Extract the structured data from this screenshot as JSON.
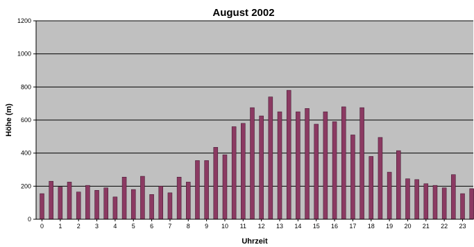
{
  "chart_data": {
    "type": "bar",
    "title": "August 2002",
    "xlabel": "Uhrzeit",
    "ylabel": "Höhe (m)",
    "ylim": [
      0,
      1200
    ],
    "yticks": [
      0,
      200,
      400,
      600,
      800,
      1000,
      1200
    ],
    "xtick_labels": [
      "0",
      "1",
      "2",
      "3",
      "4",
      "5",
      "6",
      "7",
      "8",
      "9",
      "10",
      "11",
      "12",
      "13",
      "14",
      "15",
      "16",
      "17",
      "18",
      "19",
      "20",
      "21",
      "22",
      "23"
    ],
    "x": [
      0,
      0.5,
      1,
      1.5,
      2,
      2.5,
      3,
      3.5,
      4,
      4.5,
      5,
      5.5,
      6,
      6.5,
      7,
      7.5,
      8,
      8.5,
      9,
      9.5,
      10,
      10.5,
      11,
      11.5,
      12,
      12.5,
      13,
      13.5,
      14,
      14.5,
      15,
      15.5,
      16,
      16.5,
      17,
      17.5,
      18,
      18.5,
      19,
      19.5,
      20,
      20.5,
      21,
      21.5,
      22,
      22.5,
      23,
      23.5
    ],
    "values": [
      155,
      230,
      195,
      225,
      165,
      205,
      175,
      190,
      135,
      255,
      180,
      260,
      150,
      200,
      160,
      255,
      225,
      355,
      355,
      435,
      390,
      560,
      580,
      675,
      625,
      740,
      650,
      780,
      650,
      670,
      575,
      650,
      590,
      680,
      510,
      675,
      380,
      495,
      285,
      415,
      245,
      240,
      215,
      205,
      190,
      270,
      155,
      185
    ],
    "colors": {
      "bar": "#8b3a62",
      "plot_bg": "#c0c0c0",
      "grid": "#000000"
    },
    "grid": true
  }
}
